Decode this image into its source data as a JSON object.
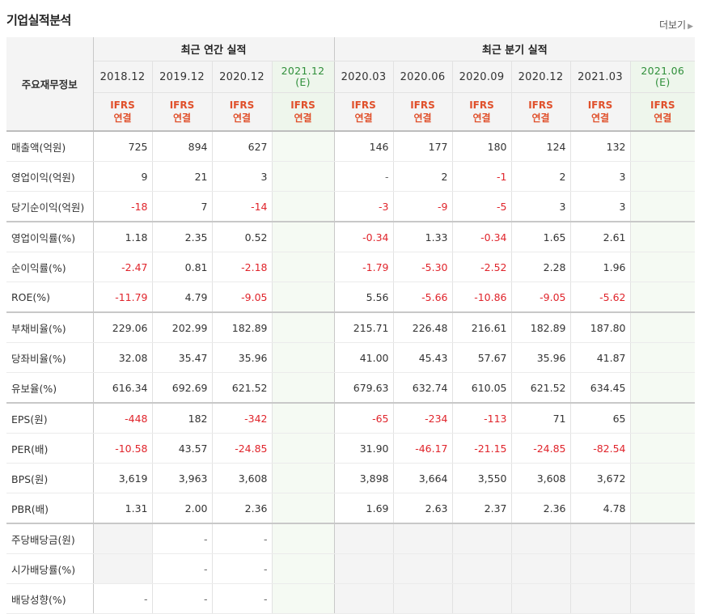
{
  "title": "기업실적분석",
  "more_label": "더보기",
  "header": {
    "row_label": "주요재무정보",
    "annual_group": "최근 연간 실적",
    "quarterly_group": "최근 분기 실적",
    "annual_periods": [
      "2018.12",
      "2019.12",
      "2020.12",
      "2021.12"
    ],
    "annual_est": "(E)",
    "quarterly_periods": [
      "2020.03",
      "2020.06",
      "2020.09",
      "2020.12",
      "2021.03",
      "2021.06"
    ],
    "quarterly_est": "(E)",
    "ifrs_top": "IFRS",
    "ifrs_bottom": "연결"
  },
  "rows": [
    {
      "label": "매출액(억원)",
      "values": [
        "725",
        "894",
        "627",
        "",
        "146",
        "177",
        "180",
        "124",
        "132",
        ""
      ]
    },
    {
      "label": "영업이익(억원)",
      "values": [
        "9",
        "21",
        "3",
        "",
        "-",
        "2",
        "-1",
        "2",
        "3",
        ""
      ]
    },
    {
      "label": "당기순이익(억원)",
      "values": [
        "-18",
        "7",
        "-14",
        "",
        "-3",
        "-9",
        "-5",
        "3",
        "3",
        ""
      ]
    },
    {
      "label": "영업이익률(%)",
      "values": [
        "1.18",
        "2.35",
        "0.52",
        "",
        "-0.34",
        "1.33",
        "-0.34",
        "1.65",
        "2.61",
        ""
      ]
    },
    {
      "label": "순이익률(%)",
      "values": [
        "-2.47",
        "0.81",
        "-2.18",
        "",
        "-1.79",
        "-5.30",
        "-2.52",
        "2.28",
        "1.96",
        ""
      ]
    },
    {
      "label": "ROE(%)",
      "values": [
        "-11.79",
        "4.79",
        "-9.05",
        "",
        "5.56",
        "-5.66",
        "-10.86",
        "-9.05",
        "-5.62",
        ""
      ]
    },
    {
      "label": "부채비율(%)",
      "values": [
        "229.06",
        "202.99",
        "182.89",
        "",
        "215.71",
        "226.48",
        "216.61",
        "182.89",
        "187.80",
        ""
      ]
    },
    {
      "label": "당좌비율(%)",
      "values": [
        "32.08",
        "35.47",
        "35.96",
        "",
        "41.00",
        "45.43",
        "57.67",
        "35.96",
        "41.87",
        ""
      ]
    },
    {
      "label": "유보율(%)",
      "values": [
        "616.34",
        "692.69",
        "621.52",
        "",
        "679.63",
        "632.74",
        "610.05",
        "621.52",
        "634.45",
        ""
      ]
    },
    {
      "label": "EPS(원)",
      "values": [
        "-448",
        "182",
        "-342",
        "",
        "-65",
        "-234",
        "-113",
        "71",
        "65",
        ""
      ]
    },
    {
      "label": "PER(배)",
      "values": [
        "-10.58",
        "43.57",
        "-24.85",
        "",
        "31.90",
        "-46.17",
        "-21.15",
        "-24.85",
        "-82.54",
        ""
      ]
    },
    {
      "label": "BPS(원)",
      "values": [
        "3,619",
        "3,963",
        "3,608",
        "",
        "3,898",
        "3,664",
        "3,550",
        "3,608",
        "3,672",
        ""
      ]
    },
    {
      "label": "PBR(배)",
      "values": [
        "1.31",
        "2.00",
        "2.36",
        "",
        "1.69",
        "2.63",
        "2.37",
        "2.36",
        "4.78",
        ""
      ]
    },
    {
      "label": "주당배당금(원)",
      "values": [
        "",
        "-",
        "-",
        "",
        "",
        "",
        "",
        "",
        "",
        ""
      ]
    },
    {
      "label": "시가배당률(%)",
      "values": [
        "",
        "-",
        "-",
        "",
        "",
        "",
        "",
        "",
        "",
        ""
      ]
    },
    {
      "label": "배당성향(%)",
      "values": [
        "-",
        "-",
        "-",
        "",
        "",
        "",
        "",
        "",
        "",
        ""
      ]
    }
  ]
}
